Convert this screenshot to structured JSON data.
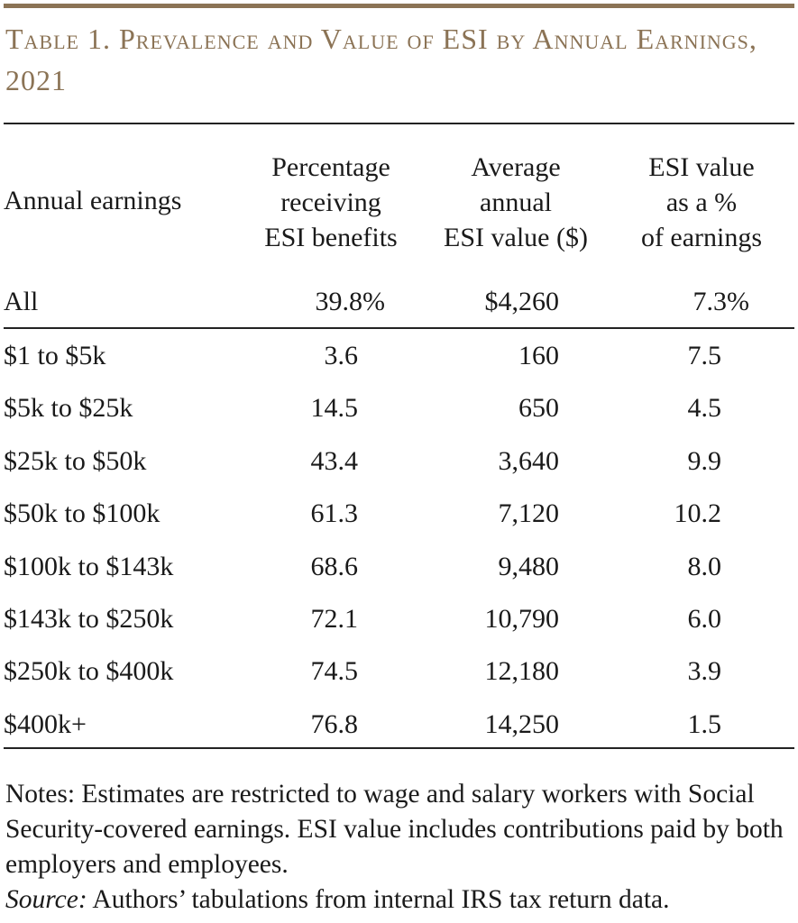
{
  "title": "Table 1. Prevalence and Value of ESI by Annual Earnings, 2021",
  "headers": {
    "col1": "Annual earnings",
    "col2": [
      "Percentage",
      "receiving",
      "ESI benefits"
    ],
    "col3": [
      "Average",
      "annual",
      "ESI value ($)"
    ],
    "col4": [
      "ESI value",
      "as a %",
      "of earnings"
    ]
  },
  "rows": [
    {
      "label": "All",
      "pct": "39.8%",
      "value": "$4,260",
      "share": "7.3%"
    },
    {
      "label": "$1 to $5k",
      "pct": "3.6",
      "value": "160",
      "share": "7.5"
    },
    {
      "label": "$5k to $25k",
      "pct": "14.5",
      "value": "650",
      "share": "4.5"
    },
    {
      "label": "$25k to $50k",
      "pct": "43.4",
      "value": "3,640",
      "share": "9.9"
    },
    {
      "label": "$50k to $100k",
      "pct": "61.3",
      "value": "7,120",
      "share": "10.2"
    },
    {
      "label": "$100k to $143k",
      "pct": "68.6",
      "value": "9,480",
      "share": "8.0"
    },
    {
      "label": "$143k to $250k",
      "pct": "72.1",
      "value": "10,790",
      "share": "6.0"
    },
    {
      "label": "$250k to $400k",
      "pct": "74.5",
      "value": "12,180",
      "share": "3.9"
    },
    {
      "label": "$400k+",
      "pct": "76.8",
      "value": "14,250",
      "share": "1.5"
    }
  ],
  "notes": {
    "text": "Notes: Estimates are restricted to wage and salary workers with Social Security-covered earnings.  ESI value includes contributions paid by both employers and employees.",
    "source_label": "Source:",
    "source_text": " Authors’ tabulations from internal IRS tax return data."
  },
  "colors": {
    "accent": "#8b7355"
  }
}
